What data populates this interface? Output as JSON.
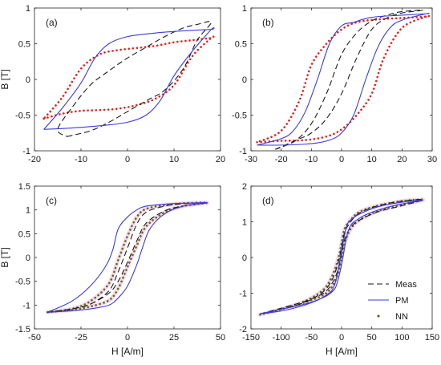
{
  "colors": {
    "meas": "#1a1a1a",
    "pm": "#3a3adf",
    "nn_red": "#e8201c",
    "nn_green": "#5a6e1e",
    "nn_glow": "#f6c6e4"
  },
  "chart_data": [
    {
      "type": "line",
      "panel_label": "(a)",
      "xlim": [
        -20,
        20
      ],
      "ylim": [
        -1,
        1
      ],
      "xticks": [
        "-20",
        "-10",
        "0",
        "10",
        "20"
      ],
      "yticks": [
        "-1",
        "-0.5",
        "0",
        "0.5",
        "1"
      ],
      "xlabel": "",
      "ylabel": "B [T]",
      "legend": false,
      "series": [
        {
          "name": "Meas",
          "style": "dashed",
          "x": [
            -13,
            -8,
            -4,
            0,
            4,
            8,
            12,
            15,
            18,
            15,
            12,
            8,
            4,
            0,
            -4,
            -8,
            -12,
            -15,
            -13
          ],
          "y": [
            -0.8,
            -0.72,
            -0.6,
            -0.45,
            -0.3,
            -0.15,
            0.15,
            0.55,
            0.8,
            0.77,
            0.72,
            0.6,
            0.45,
            0.3,
            0.12,
            -0.08,
            -0.4,
            -0.7,
            -0.8
          ]
        },
        {
          "name": "PM",
          "style": "solid",
          "x": [
            -18,
            -12,
            -6,
            0,
            4,
            7,
            10,
            14,
            18,
            18,
            12,
            6,
            0,
            -4,
            -7,
            -10,
            -14,
            -18
          ],
          "y": [
            -0.7,
            -0.68,
            -0.65,
            -0.6,
            -0.5,
            -0.3,
            0.05,
            0.4,
            0.7,
            0.7,
            0.68,
            0.65,
            0.6,
            0.5,
            0.3,
            -0.05,
            -0.4,
            -0.7
          ]
        },
        {
          "name": "NN",
          "style": "dots",
          "color": "nn_red",
          "x": [
            -18,
            -14,
            -10,
            -6,
            -2,
            2,
            6,
            10,
            14,
            18,
            18,
            14,
            10,
            6,
            2,
            -2,
            -6,
            -10,
            -14,
            -18
          ],
          "y": [
            -0.55,
            -0.48,
            -0.44,
            -0.43,
            -0.41,
            -0.36,
            -0.27,
            -0.08,
            0.33,
            0.58,
            0.58,
            0.55,
            0.52,
            0.47,
            0.44,
            0.41,
            0.35,
            0.15,
            -0.25,
            -0.55
          ]
        }
      ]
    },
    {
      "type": "line",
      "panel_label": "(b)",
      "xlim": [
        -30,
        30
      ],
      "ylim": [
        -1,
        1
      ],
      "xticks": [
        "-30",
        "-20",
        "-10",
        "0",
        "10",
        "20",
        "30"
      ],
      "yticks": [
        "-1",
        "-0.5",
        "0",
        "0.5",
        "1"
      ],
      "xlabel": "",
      "ylabel": "",
      "legend": false,
      "series": [
        {
          "name": "Meas",
          "style": "dashed",
          "x": [
            -22,
            -15,
            -10,
            -5,
            0,
            5,
            10,
            15,
            20,
            27,
            20,
            15,
            10,
            5,
            0,
            -5,
            -10,
            -15,
            -20,
            -22
          ],
          "y": [
            -0.98,
            -0.85,
            -0.75,
            -0.55,
            -0.2,
            0.3,
            0.7,
            0.86,
            0.93,
            0.97,
            0.95,
            0.9,
            0.82,
            0.65,
            0.35,
            -0.2,
            -0.62,
            -0.85,
            -0.95,
            -0.98
          ]
        },
        {
          "name": "PM",
          "style": "solid",
          "x": [
            -28,
            -20,
            -10,
            -4,
            0,
            4,
            8,
            12,
            16,
            20,
            28,
            28,
            20,
            10,
            4,
            0,
            -4,
            -8,
            -12,
            -16,
            -20,
            -28
          ],
          "y": [
            -0.92,
            -0.92,
            -0.9,
            -0.85,
            -0.75,
            -0.5,
            0.0,
            0.45,
            0.72,
            0.83,
            0.92,
            0.92,
            0.9,
            0.87,
            0.8,
            0.75,
            0.5,
            0.0,
            -0.45,
            -0.72,
            -0.83,
            -0.92
          ]
        },
        {
          "name": "NN",
          "style": "dots",
          "color": "nn_red",
          "x": [
            -28,
            -20,
            -12,
            -5,
            0,
            5,
            10,
            14,
            20,
            28,
            28,
            20,
            12,
            5,
            0,
            -5,
            -10,
            -14,
            -20,
            -28
          ],
          "y": [
            -0.88,
            -0.86,
            -0.85,
            -0.8,
            -0.7,
            -0.5,
            -0.2,
            0.3,
            0.72,
            0.88,
            0.88,
            0.86,
            0.84,
            0.8,
            0.7,
            0.5,
            0.2,
            -0.3,
            -0.72,
            -0.88
          ]
        }
      ]
    },
    {
      "type": "line",
      "panel_label": "(c)",
      "xlim": [
        -50,
        50
      ],
      "ylim": [
        -1.5,
        1.5
      ],
      "xticks": [
        "-50",
        "-25",
        "0",
        "25",
        "50"
      ],
      "yticks": [
        "-1.5",
        "-1",
        "-0.5",
        "0",
        "0.5",
        "1",
        "1.5"
      ],
      "xlabel": "H [A/m]",
      "ylabel": "B [T]",
      "legend": false,
      "series": [
        {
          "name": "Meas",
          "style": "dashed",
          "x": [
            -43,
            -30,
            -20,
            -10,
            -5,
            0,
            5,
            10,
            20,
            30,
            43,
            30,
            20,
            10,
            5,
            0,
            -5,
            -10,
            -20,
            -30,
            -43
          ],
          "y": [
            -1.15,
            -1.08,
            -0.98,
            -0.75,
            -0.5,
            -0.1,
            0.35,
            0.72,
            0.98,
            1.08,
            1.15,
            1.13,
            1.08,
            0.95,
            0.7,
            0.2,
            -0.3,
            -0.7,
            -0.98,
            -1.08,
            -1.15
          ]
        },
        {
          "name": "PM",
          "style": "solid",
          "x": [
            -43,
            -30,
            -20,
            -10,
            -5,
            0,
            5,
            8,
            12,
            20,
            30,
            43,
            30,
            20,
            10,
            5,
            0,
            -5,
            -8,
            -12,
            -20,
            -30,
            -43
          ],
          "y": [
            -1.15,
            -1.12,
            -1.08,
            -1.0,
            -0.85,
            -0.6,
            -0.15,
            0.2,
            0.6,
            0.92,
            1.08,
            1.15,
            1.14,
            1.12,
            1.08,
            1.0,
            0.85,
            0.6,
            0.15,
            -0.2,
            -0.6,
            -0.92,
            -1.15
          ]
        },
        {
          "name": "NN",
          "style": "dots",
          "color": "nn_green",
          "x": [
            -43,
            -30,
            -20,
            -10,
            -5,
            0,
            5,
            10,
            20,
            30,
            43,
            30,
            20,
            10,
            5,
            0,
            -5,
            -10,
            -20,
            -30,
            -43
          ],
          "y": [
            -1.15,
            -1.1,
            -1.03,
            -0.9,
            -0.65,
            -0.2,
            0.25,
            0.65,
            0.95,
            1.08,
            1.15,
            1.14,
            1.1,
            1.02,
            0.85,
            0.45,
            -0.05,
            -0.55,
            -0.92,
            -1.08,
            -1.15
          ]
        }
      ]
    },
    {
      "type": "line",
      "panel_label": "(d)",
      "xlim": [
        -150,
        150
      ],
      "ylim": [
        -2,
        2
      ],
      "xticks": [
        "-150",
        "-100",
        "-50",
        "0",
        "50",
        "100",
        "150"
      ],
      "yticks": [
        "-2",
        "-1",
        "0",
        "1",
        "2"
      ],
      "xlabel": "H [A/m]",
      "ylabel": "",
      "legend": true,
      "legend_position": "bottom-right",
      "series": [
        {
          "name": "Meas",
          "style": "dashed",
          "x": [
            -135,
            -100,
            -60,
            -30,
            -15,
            -5,
            0,
            5,
            15,
            30,
            60,
            100,
            135,
            100,
            60,
            30,
            15,
            5,
            0,
            -5,
            -15,
            -30,
            -60,
            -100,
            -135
          ],
          "y": [
            -1.58,
            -1.42,
            -1.22,
            -1.0,
            -0.7,
            -0.3,
            0.1,
            0.5,
            0.85,
            1.05,
            1.28,
            1.45,
            1.62,
            1.58,
            1.45,
            1.25,
            1.0,
            0.7,
            0.3,
            -0.1,
            -0.6,
            -0.95,
            -1.25,
            -1.45,
            -1.58
          ]
        },
        {
          "name": "PM",
          "style": "solid",
          "x": [
            -135,
            -100,
            -60,
            -30,
            -15,
            -8,
            0,
            8,
            15,
            25,
            40,
            70,
            100,
            135,
            100,
            60,
            30,
            15,
            8,
            0,
            -8,
            -15,
            -25,
            -40,
            -70,
            -100,
            -135
          ],
          "y": [
            -1.58,
            -1.45,
            -1.3,
            -1.12,
            -0.95,
            -0.75,
            -0.2,
            0.55,
            0.9,
            1.05,
            1.2,
            1.38,
            1.5,
            1.6,
            1.55,
            1.42,
            1.22,
            1.05,
            0.85,
            0.2,
            -0.55,
            -0.9,
            -1.05,
            -1.2,
            -1.38,
            -1.5,
            -1.58
          ]
        },
        {
          "name": "NN",
          "style": "dots",
          "color": "nn_green",
          "x": [
            -135,
            -100,
            -60,
            -30,
            -15,
            -5,
            0,
            5,
            15,
            30,
            60,
            100,
            135,
            100,
            60,
            30,
            15,
            5,
            0,
            -5,
            -15,
            -30,
            -60,
            -100,
            -135
          ],
          "y": [
            -1.6,
            -1.45,
            -1.25,
            -1.05,
            -0.8,
            -0.4,
            0.0,
            0.4,
            0.8,
            1.05,
            1.3,
            1.48,
            1.62,
            1.58,
            1.45,
            1.28,
            1.05,
            0.8,
            0.4,
            0.0,
            -0.5,
            -0.9,
            -1.22,
            -1.45,
            -1.6
          ]
        }
      ]
    }
  ]
}
